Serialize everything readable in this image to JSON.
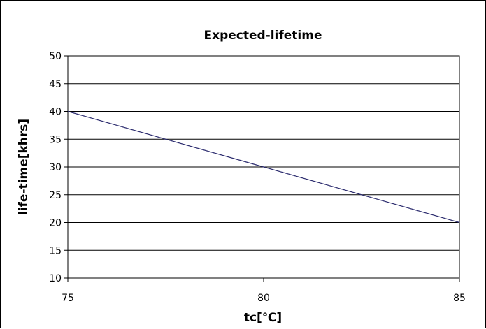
{
  "chart_data": {
    "type": "line",
    "title": "Expected-lifetime",
    "xlabel": "tc[℃]",
    "ylabel": "life-time[khrs]",
    "xlim": [
      75,
      85
    ],
    "ylim": [
      10,
      50
    ],
    "x_ticks": [
      "75",
      "80",
      "85"
    ],
    "y_ticks": [
      "10",
      "15",
      "20",
      "25",
      "30",
      "35",
      "40",
      "45",
      "50"
    ],
    "grid": "horizontal",
    "legend": "none",
    "series": [
      {
        "x": [
          75,
          80,
          85
        ],
        "values": [
          40,
          30,
          20
        ],
        "color": "#2b2b6e"
      }
    ]
  }
}
